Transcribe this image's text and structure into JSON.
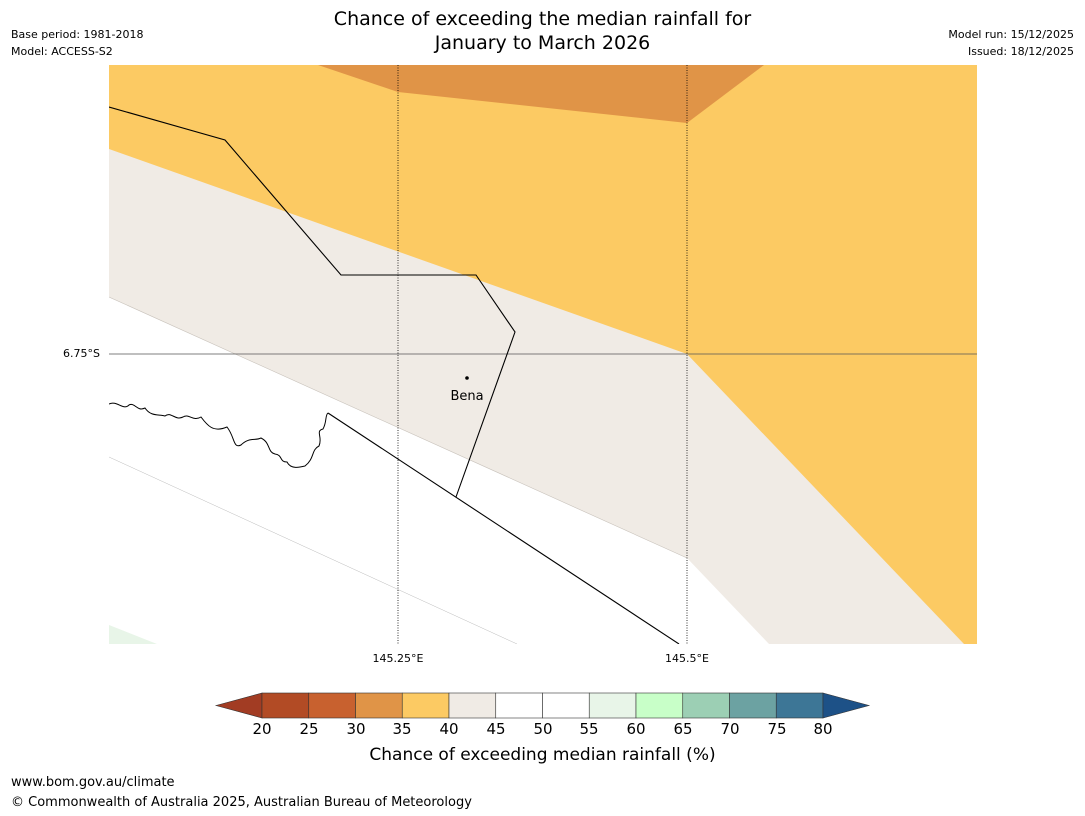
{
  "title": {
    "line1": "Chance of exceeding the median rainfall for",
    "line2": "January to March 2026"
  },
  "meta_left": {
    "base_period": "Base period: 1981-2018",
    "model": "Model: ACCESS-S2"
  },
  "meta_right": {
    "model_run": "Model run: 15/12/2025",
    "issued": "Issued: 18/12/2025"
  },
  "map": {
    "latitude_label": "6.75°S",
    "longitude_labels": [
      "145.25°E",
      "145.5°E"
    ],
    "place_label": "Bena"
  },
  "colorbar": {
    "ticks": [
      "20",
      "25",
      "30",
      "35",
      "40",
      "45",
      "50",
      "55",
      "60",
      "65",
      "70",
      "75",
      "80"
    ],
    "colors": [
      "#a23c23",
      "#b24b25",
      "#c8612f",
      "#e09447",
      "#fcca63",
      "#f0ebe5",
      "#ffffff",
      "#ffffff",
      "#e8f5e8",
      "#c8ffc8",
      "#9ccfb4",
      "#6ca2a2",
      "#3d7696",
      "#1d5187"
    ],
    "label": "Chance of exceeding median rainfall (%)"
  },
  "footer": {
    "url": "www.bom.gov.au/climate",
    "copyright": "© Commonwealth of Australia 2025, Australian Bureau of Meteorology"
  }
}
